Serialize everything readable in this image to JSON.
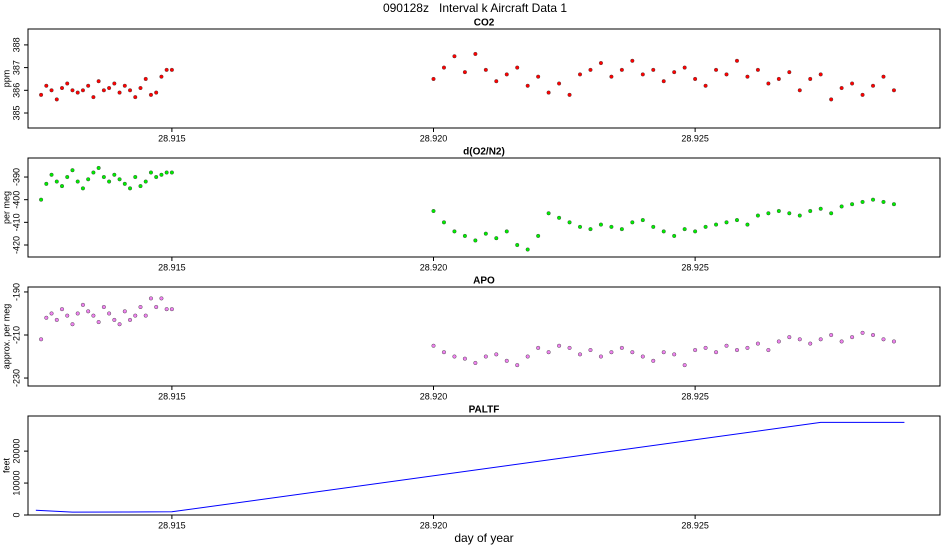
{
  "title": "090128z   Interval k Aircraft Data 1",
  "chart_data": [
    {
      "type": "scatter",
      "title": "CO2",
      "ylabel": "ppm",
      "color": "#ff0000",
      "x": [
        28.9125,
        28.9126,
        28.9127,
        28.9128,
        28.9129,
        28.913,
        28.9131,
        28.9132,
        28.9133,
        28.9134,
        28.9135,
        28.9136,
        28.9137,
        28.9138,
        28.9139,
        28.914,
        28.9141,
        28.9142,
        28.9143,
        28.9144,
        28.9145,
        28.9146,
        28.9147,
        28.9148,
        28.9149,
        28.915,
        28.92,
        28.9202,
        28.9204,
        28.9206,
        28.9208,
        28.921,
        28.9212,
        28.9214,
        28.9216,
        28.9218,
        28.922,
        28.9222,
        28.9224,
        28.9226,
        28.9228,
        28.923,
        28.9232,
        28.9234,
        28.9236,
        28.9238,
        28.924,
        28.9242,
        28.9244,
        28.9246,
        28.9248,
        28.925,
        28.9252,
        28.9254,
        28.9256,
        28.9258,
        28.926,
        28.9262,
        28.9264,
        28.9266,
        28.9268,
        28.927,
        28.9272,
        28.9274,
        28.9276,
        28.9278,
        28.928,
        28.9282,
        28.9284,
        28.9286,
        28.9288
      ],
      "values": [
        385.8,
        386.2,
        386.0,
        385.6,
        386.1,
        386.3,
        386.0,
        385.9,
        386.0,
        386.2,
        385.7,
        386.4,
        386.0,
        386.1,
        386.3,
        385.9,
        386.2,
        386.0,
        385.7,
        386.1,
        386.5,
        385.8,
        385.9,
        386.6,
        386.9,
        386.9,
        386.5,
        387.0,
        387.5,
        386.8,
        387.6,
        386.9,
        386.4,
        386.7,
        387.0,
        386.2,
        386.6,
        385.9,
        386.3,
        385.8,
        386.7,
        386.9,
        387.2,
        386.6,
        386.9,
        387.3,
        386.7,
        386.9,
        386.4,
        386.8,
        387.0,
        386.5,
        386.2,
        386.9,
        386.7,
        387.3,
        386.6,
        386.9,
        386.3,
        386.5,
        386.8,
        386.0,
        386.5,
        386.7,
        385.6,
        386.1,
        386.3,
        385.8,
        386.2,
        386.6,
        386.0
      ],
      "xlim": [
        28.91225,
        28.92968
      ],
      "xticks": [
        28.915,
        {
          "value": 28.92,
          "label": "28.920"
        },
        28.925
      ],
      "ylim": [
        384.34,
        388.7
      ],
      "yticks": [
        385,
        386,
        387,
        388
      ]
    },
    {
      "type": "scatter",
      "title": "d(O2/N2)",
      "ylabel": "per meg",
      "color": "#00ee00",
      "x": [
        28.9125,
        28.9126,
        28.9127,
        28.9128,
        28.9129,
        28.913,
        28.9131,
        28.9132,
        28.9133,
        28.9134,
        28.9135,
        28.9136,
        28.9137,
        28.9138,
        28.9139,
        28.914,
        28.9141,
        28.9142,
        28.9143,
        28.9144,
        28.9145,
        28.9146,
        28.9147,
        28.9148,
        28.9149,
        28.915,
        28.92,
        28.9202,
        28.9204,
        28.9206,
        28.9208,
        28.921,
        28.9212,
        28.9214,
        28.9216,
        28.9218,
        28.922,
        28.9222,
        28.9224,
        28.9226,
        28.9228,
        28.923,
        28.9232,
        28.9234,
        28.9236,
        28.9238,
        28.924,
        28.9242,
        28.9244,
        28.9246,
        28.9248,
        28.925,
        28.9252,
        28.9254,
        28.9256,
        28.9258,
        28.926,
        28.9262,
        28.9264,
        28.9266,
        28.9268,
        28.927,
        28.9272,
        28.9274,
        28.9276,
        28.9278,
        28.928,
        28.9282,
        28.9284,
        28.9286,
        28.9288
      ],
      "values": [
        -400,
        -393,
        -389,
        -392,
        -394,
        -390,
        -387,
        -392,
        -395,
        -391,
        -388,
        -386,
        -390,
        -392,
        -389,
        -391,
        -393,
        -395,
        -390,
        -394,
        -392,
        -388,
        -390,
        -389,
        -388,
        -388,
        -405,
        -410,
        -414,
        -416,
        -418,
        -415,
        -417,
        -414,
        -420,
        -422,
        -416,
        -406,
        -408,
        -410,
        -412,
        -413,
        -411,
        -412,
        -413,
        -410,
        -409,
        -412,
        -414,
        -416,
        -413,
        -414,
        -412,
        -411,
        -410,
        -409,
        -411,
        -407,
        -406,
        -405,
        -406,
        -407,
        -405,
        -404,
        -406,
        -403,
        -402,
        -401,
        -400,
        -401,
        -402
      ],
      "xlim": [
        28.91225,
        28.92968
      ],
      "xticks": [
        28.915,
        {
          "value": 28.92,
          "label": "28.920"
        },
        28.925
      ],
      "ylim": [
        -425.3,
        -381.6
      ],
      "yticks": [
        -390,
        -400,
        -410,
        -420
      ]
    },
    {
      "type": "scatter",
      "title": "APO",
      "ylabel": "approx. per meg",
      "color": "#ee82ee",
      "x": [
        28.9125,
        28.9126,
        28.9127,
        28.9128,
        28.9129,
        28.913,
        28.9131,
        28.9132,
        28.9133,
        28.9134,
        28.9135,
        28.9136,
        28.9137,
        28.9138,
        28.9139,
        28.914,
        28.9141,
        28.9142,
        28.9143,
        28.9144,
        28.9145,
        28.9146,
        28.9147,
        28.9148,
        28.9149,
        28.915,
        28.92,
        28.9202,
        28.9204,
        28.9206,
        28.9208,
        28.921,
        28.9212,
        28.9214,
        28.9216,
        28.9218,
        28.922,
        28.9222,
        28.9224,
        28.9226,
        28.9228,
        28.923,
        28.9232,
        28.9234,
        28.9236,
        28.9238,
        28.924,
        28.9242,
        28.9244,
        28.9246,
        28.9248,
        28.925,
        28.9252,
        28.9254,
        28.9256,
        28.9258,
        28.926,
        28.9262,
        28.9264,
        28.9266,
        28.9268,
        28.927,
        28.9272,
        28.9274,
        28.9276,
        28.9278,
        28.928,
        28.9282,
        28.9284,
        28.9286,
        28.9288
      ],
      "values": [
        -212,
        -202,
        -200,
        -203,
        -198,
        -201,
        -205,
        -200,
        -196,
        -199,
        -201,
        -204,
        -197,
        -200,
        -203,
        -205,
        -199,
        -203,
        -201,
        -197,
        -201,
        -193,
        -197,
        -193,
        -198,
        -198,
        -215,
        -218,
        -220,
        -221,
        -223,
        -220,
        -219,
        -222,
        -224,
        -220,
        -216,
        -218,
        -215,
        -216,
        -219,
        -217,
        -220,
        -218,
        -216,
        -218,
        -220,
        -222,
        -218,
        -219,
        -224,
        -217,
        -216,
        -218,
        -215,
        -217,
        -216,
        -214,
        -217,
        -213,
        -211,
        -212,
        -214,
        -212,
        -210,
        -213,
        -211,
        -209,
        -210,
        -212,
        -213
      ],
      "xlim": [
        28.91225,
        28.92968
      ],
      "xticks": [
        28.915,
        {
          "value": 28.92,
          "label": "28.920"
        },
        28.925
      ],
      "ylim": [
        -233.7,
        -187.7
      ],
      "yticks": [
        -190,
        -210,
        -230
      ]
    },
    {
      "type": "line",
      "title": "PALTF",
      "ylabel": "feet",
      "xlabel": "day of year",
      "color": "#0000ff",
      "x": [
        28.9124,
        28.9131,
        28.915,
        28.9274,
        28.929
      ],
      "values": [
        1500,
        900,
        1000,
        29000,
        29000
      ],
      "xlim": [
        28.91225,
        28.92968
      ],
      "xticks": [
        28.915,
        {
          "value": 28.92,
          "label": "28.920"
        },
        28.925
      ],
      "ylim": [
        0,
        31000
      ],
      "yticks": [
        0,
        10000,
        20000
      ]
    }
  ]
}
